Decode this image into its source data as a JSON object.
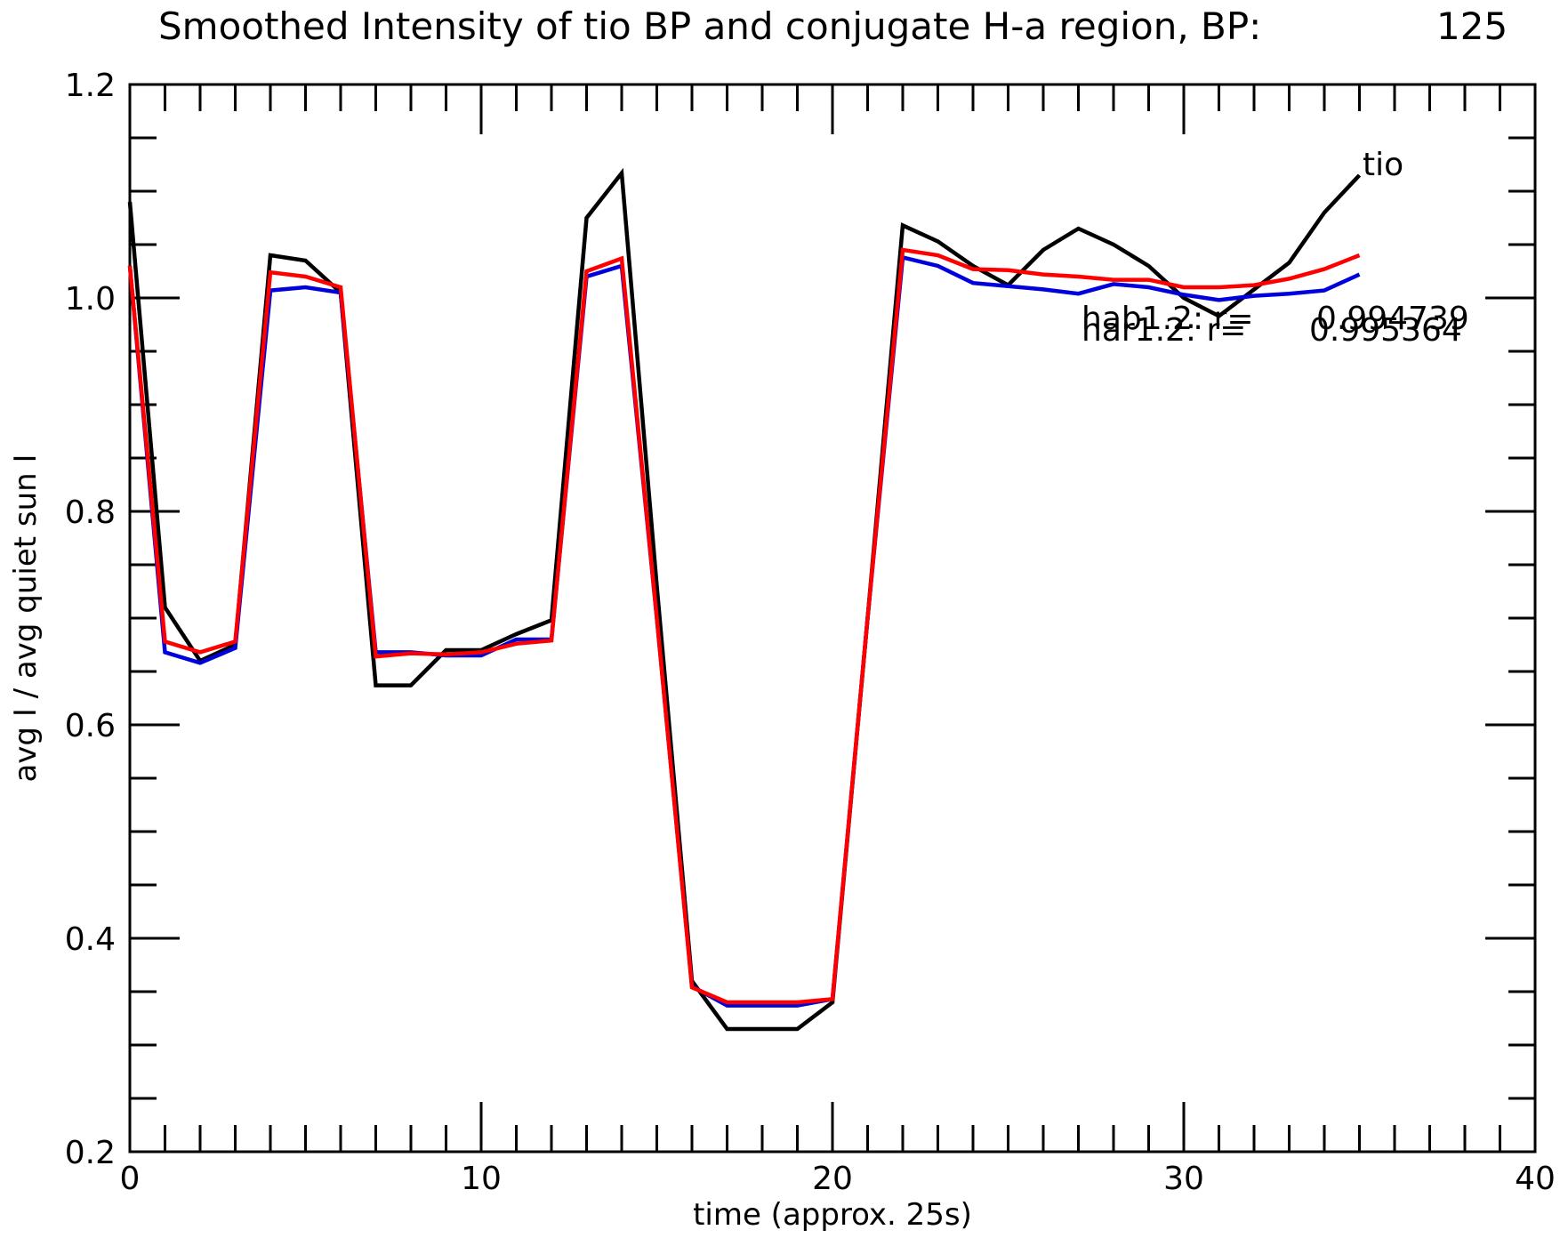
{
  "chart_data": {
    "type": "line",
    "title": "Smoothed Intensity of tio BP and conjugate H-a region, BP:",
    "title_value": "125",
    "xlabel": "time (approx. 25s)",
    "ylabel": "avg I / avg quiet sun I",
    "xlim": [
      0,
      40
    ],
    "ylim": [
      0.2,
      1.2
    ],
    "x_ticks": [
      "0",
      "10",
      "20",
      "30",
      "40"
    ],
    "y_ticks": [
      "0.2",
      "0.4",
      "0.6",
      "0.8",
      "1.0",
      "1.2"
    ],
    "grid": false,
    "legend": "none",
    "x": [
      0,
      1,
      2,
      3,
      4,
      5,
      6,
      7,
      8,
      9,
      10,
      11,
      12,
      13,
      14,
      15,
      16,
      17,
      18,
      19,
      20,
      21,
      22,
      23,
      24,
      25,
      26,
      27,
      28,
      29,
      30,
      31,
      32,
      33,
      34,
      35
    ],
    "series": [
      {
        "name": "tio",
        "color": "#000000",
        "values": [
          1.09,
          0.71,
          0.66,
          0.675,
          1.04,
          1.035,
          1.005,
          0.637,
          0.637,
          0.67,
          0.67,
          0.685,
          0.698,
          1.075,
          1.117,
          0.73,
          0.36,
          0.315,
          0.315,
          0.315,
          0.34,
          0.7,
          1.068,
          1.053,
          1.03,
          1.012,
          1.045,
          1.065,
          1.05,
          1.03,
          1.0,
          0.983,
          1.008,
          1.033,
          1.08,
          1.115
        ]
      },
      {
        "color": "#0000dd",
        "values": [
          1.03,
          0.668,
          0.658,
          0.672,
          1.007,
          1.01,
          1.005,
          0.668,
          0.668,
          0.665,
          0.665,
          0.68,
          0.68,
          1.02,
          1.03,
          0.7,
          0.355,
          0.337,
          0.337,
          0.337,
          0.343,
          0.7,
          1.038,
          1.03,
          1.014,
          1.011,
          1.008,
          1.004,
          1.013,
          1.01,
          1.003,
          0.998,
          1.002,
          1.004,
          1.007,
          1.022
        ]
      },
      {
        "color": "#ff0000",
        "values": [
          1.03,
          0.678,
          0.668,
          0.678,
          1.024,
          1.02,
          1.01,
          0.664,
          0.667,
          0.666,
          0.668,
          0.676,
          0.679,
          1.025,
          1.037,
          0.7,
          0.354,
          0.34,
          0.34,
          0.34,
          0.343,
          0.7,
          1.045,
          1.04,
          1.027,
          1.026,
          1.022,
          1.02,
          1.017,
          1.017,
          1.01,
          1.01,
          1.012,
          1.018,
          1.027,
          1.04
        ]
      }
    ],
    "annotations": [
      {
        "text": "hab1.2: r=",
        "value": "0.994739"
      },
      {
        "text": "har1.2: r=",
        "value": "0.995364"
      }
    ]
  }
}
